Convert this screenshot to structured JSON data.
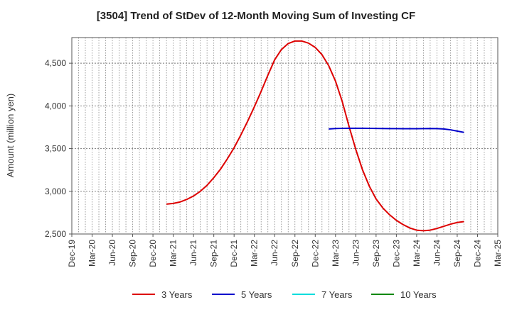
{
  "title": "[3504]  Trend of StDev of 12-Month Moving Sum of Investing CF",
  "chart_data": {
    "type": "line",
    "title": "[3504]  Trend of StDev of 12-Month Moving Sum of Investing CF",
    "xlabel": "",
    "ylabel": "Amount (million yen)",
    "ylim": [
      2500,
      4800
    ],
    "yticks": [
      2500,
      3000,
      3500,
      4000,
      4500
    ],
    "ytick_labels": [
      "2,500",
      "3,000",
      "3,500",
      "4,000",
      "4,500"
    ],
    "x_range": [
      "Dec-19",
      "Mar-25"
    ],
    "xtick_labels": [
      "Dec-19",
      "Mar-20",
      "Jun-20",
      "Sep-20",
      "Dec-20",
      "Mar-21",
      "Jun-21",
      "Sep-21",
      "Dec-21",
      "Mar-22",
      "Jun-22",
      "Sep-22",
      "Dec-22",
      "Mar-23",
      "Jun-23",
      "Sep-23",
      "Dec-23",
      "Mar-24",
      "Jun-24",
      "Sep-24",
      "Dec-24",
      "Mar-25"
    ],
    "grid": true,
    "legend_position": "bottom",
    "series": [
      {
        "name": "3 Years",
        "color": "#dd0000",
        "points": [
          [
            "Feb-21",
            2850
          ],
          [
            "Mar-21",
            2858
          ],
          [
            "Apr-21",
            2875
          ],
          [
            "May-21",
            2905
          ],
          [
            "Jun-21",
            2945
          ],
          [
            "Jul-21",
            3000
          ],
          [
            "Aug-21",
            3070
          ],
          [
            "Sep-21",
            3160
          ],
          [
            "Oct-21",
            3260
          ],
          [
            "Nov-21",
            3380
          ],
          [
            "Dec-21",
            3510
          ],
          [
            "Jan-22",
            3660
          ],
          [
            "Feb-22",
            3820
          ],
          [
            "Mar-22",
            3990
          ],
          [
            "Apr-22",
            4170
          ],
          [
            "May-22",
            4360
          ],
          [
            "Jun-22",
            4540
          ],
          [
            "Jul-22",
            4660
          ],
          [
            "Aug-22",
            4730
          ],
          [
            "Sep-22",
            4760
          ],
          [
            "Oct-22",
            4760
          ],
          [
            "Nov-22",
            4735
          ],
          [
            "Dec-22",
            4685
          ],
          [
            "Jan-23",
            4600
          ],
          [
            "Feb-23",
            4470
          ],
          [
            "Mar-23",
            4290
          ],
          [
            "Apr-23",
            4050
          ],
          [
            "May-23",
            3760
          ],
          [
            "Jun-23",
            3490
          ],
          [
            "Jul-23",
            3250
          ],
          [
            "Aug-23",
            3060
          ],
          [
            "Sep-23",
            2910
          ],
          [
            "Oct-23",
            2805
          ],
          [
            "Nov-23",
            2725
          ],
          [
            "Dec-23",
            2660
          ],
          [
            "Jan-24",
            2610
          ],
          [
            "Feb-24",
            2570
          ],
          [
            "Mar-24",
            2545
          ],
          [
            "Apr-24",
            2538
          ],
          [
            "May-24",
            2545
          ],
          [
            "Jun-24",
            2565
          ],
          [
            "Jul-24",
            2590
          ],
          [
            "Aug-24",
            2615
          ],
          [
            "Sep-24",
            2635
          ],
          [
            "Oct-24",
            2645
          ]
        ]
      },
      {
        "name": "5 Years",
        "color": "#0000cc",
        "points": [
          [
            "Feb-23",
            3730
          ],
          [
            "Mar-23",
            3735
          ],
          [
            "Apr-23",
            3737
          ],
          [
            "May-23",
            3738
          ],
          [
            "Jun-23",
            3738
          ],
          [
            "Jul-23",
            3738
          ],
          [
            "Aug-23",
            3737
          ],
          [
            "Sep-23",
            3736
          ],
          [
            "Oct-23",
            3735
          ],
          [
            "Nov-23",
            3734
          ],
          [
            "Dec-23",
            3734
          ],
          [
            "Jan-24",
            3733
          ],
          [
            "Feb-24",
            3733
          ],
          [
            "Mar-24",
            3733
          ],
          [
            "Apr-24",
            3734
          ],
          [
            "May-24",
            3735
          ],
          [
            "Jun-24",
            3734
          ],
          [
            "Jul-24",
            3730
          ],
          [
            "Aug-24",
            3720
          ],
          [
            "Sep-24",
            3705
          ],
          [
            "Oct-24",
            3690
          ]
        ]
      },
      {
        "name": "7 Years",
        "color": "#00dddd",
        "points": []
      },
      {
        "name": "10 Years",
        "color": "#118811",
        "points": []
      }
    ]
  }
}
